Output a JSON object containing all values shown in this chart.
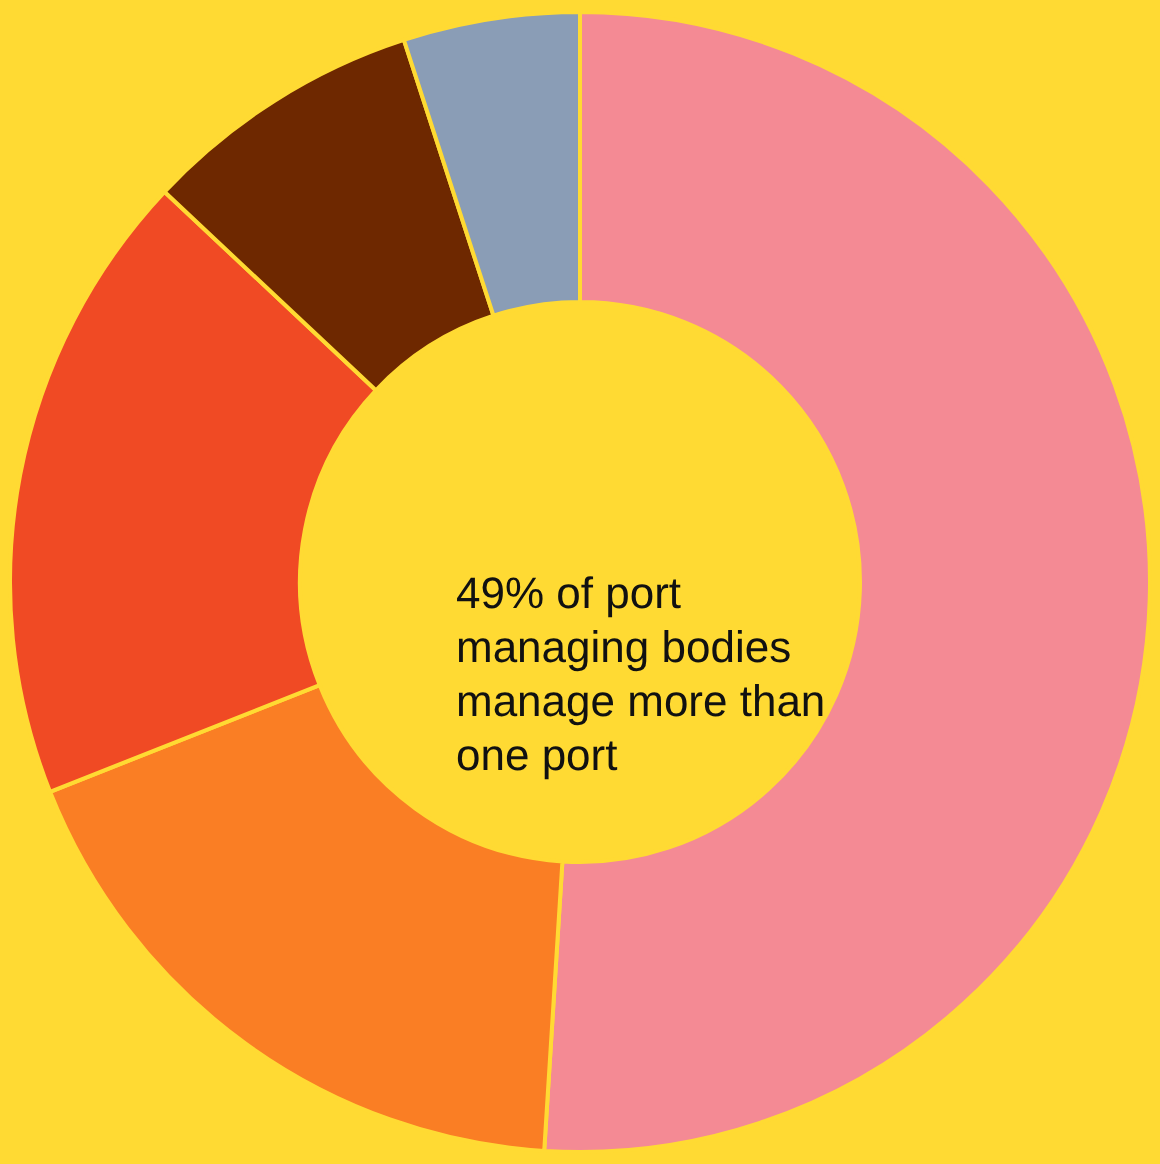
{
  "chart_data": {
    "type": "donut",
    "categories": [
      null,
      null,
      null,
      null,
      null
    ],
    "values": [
      51,
      18,
      18,
      8,
      5
    ],
    "colors": [
      "#f48a94",
      "#fa7e24",
      "#f04a24",
      "#6e2800",
      "#8a9db6"
    ],
    "annotations": [
      "49% of port\nmanaging bodies\nmanage more than\none port"
    ]
  }
}
